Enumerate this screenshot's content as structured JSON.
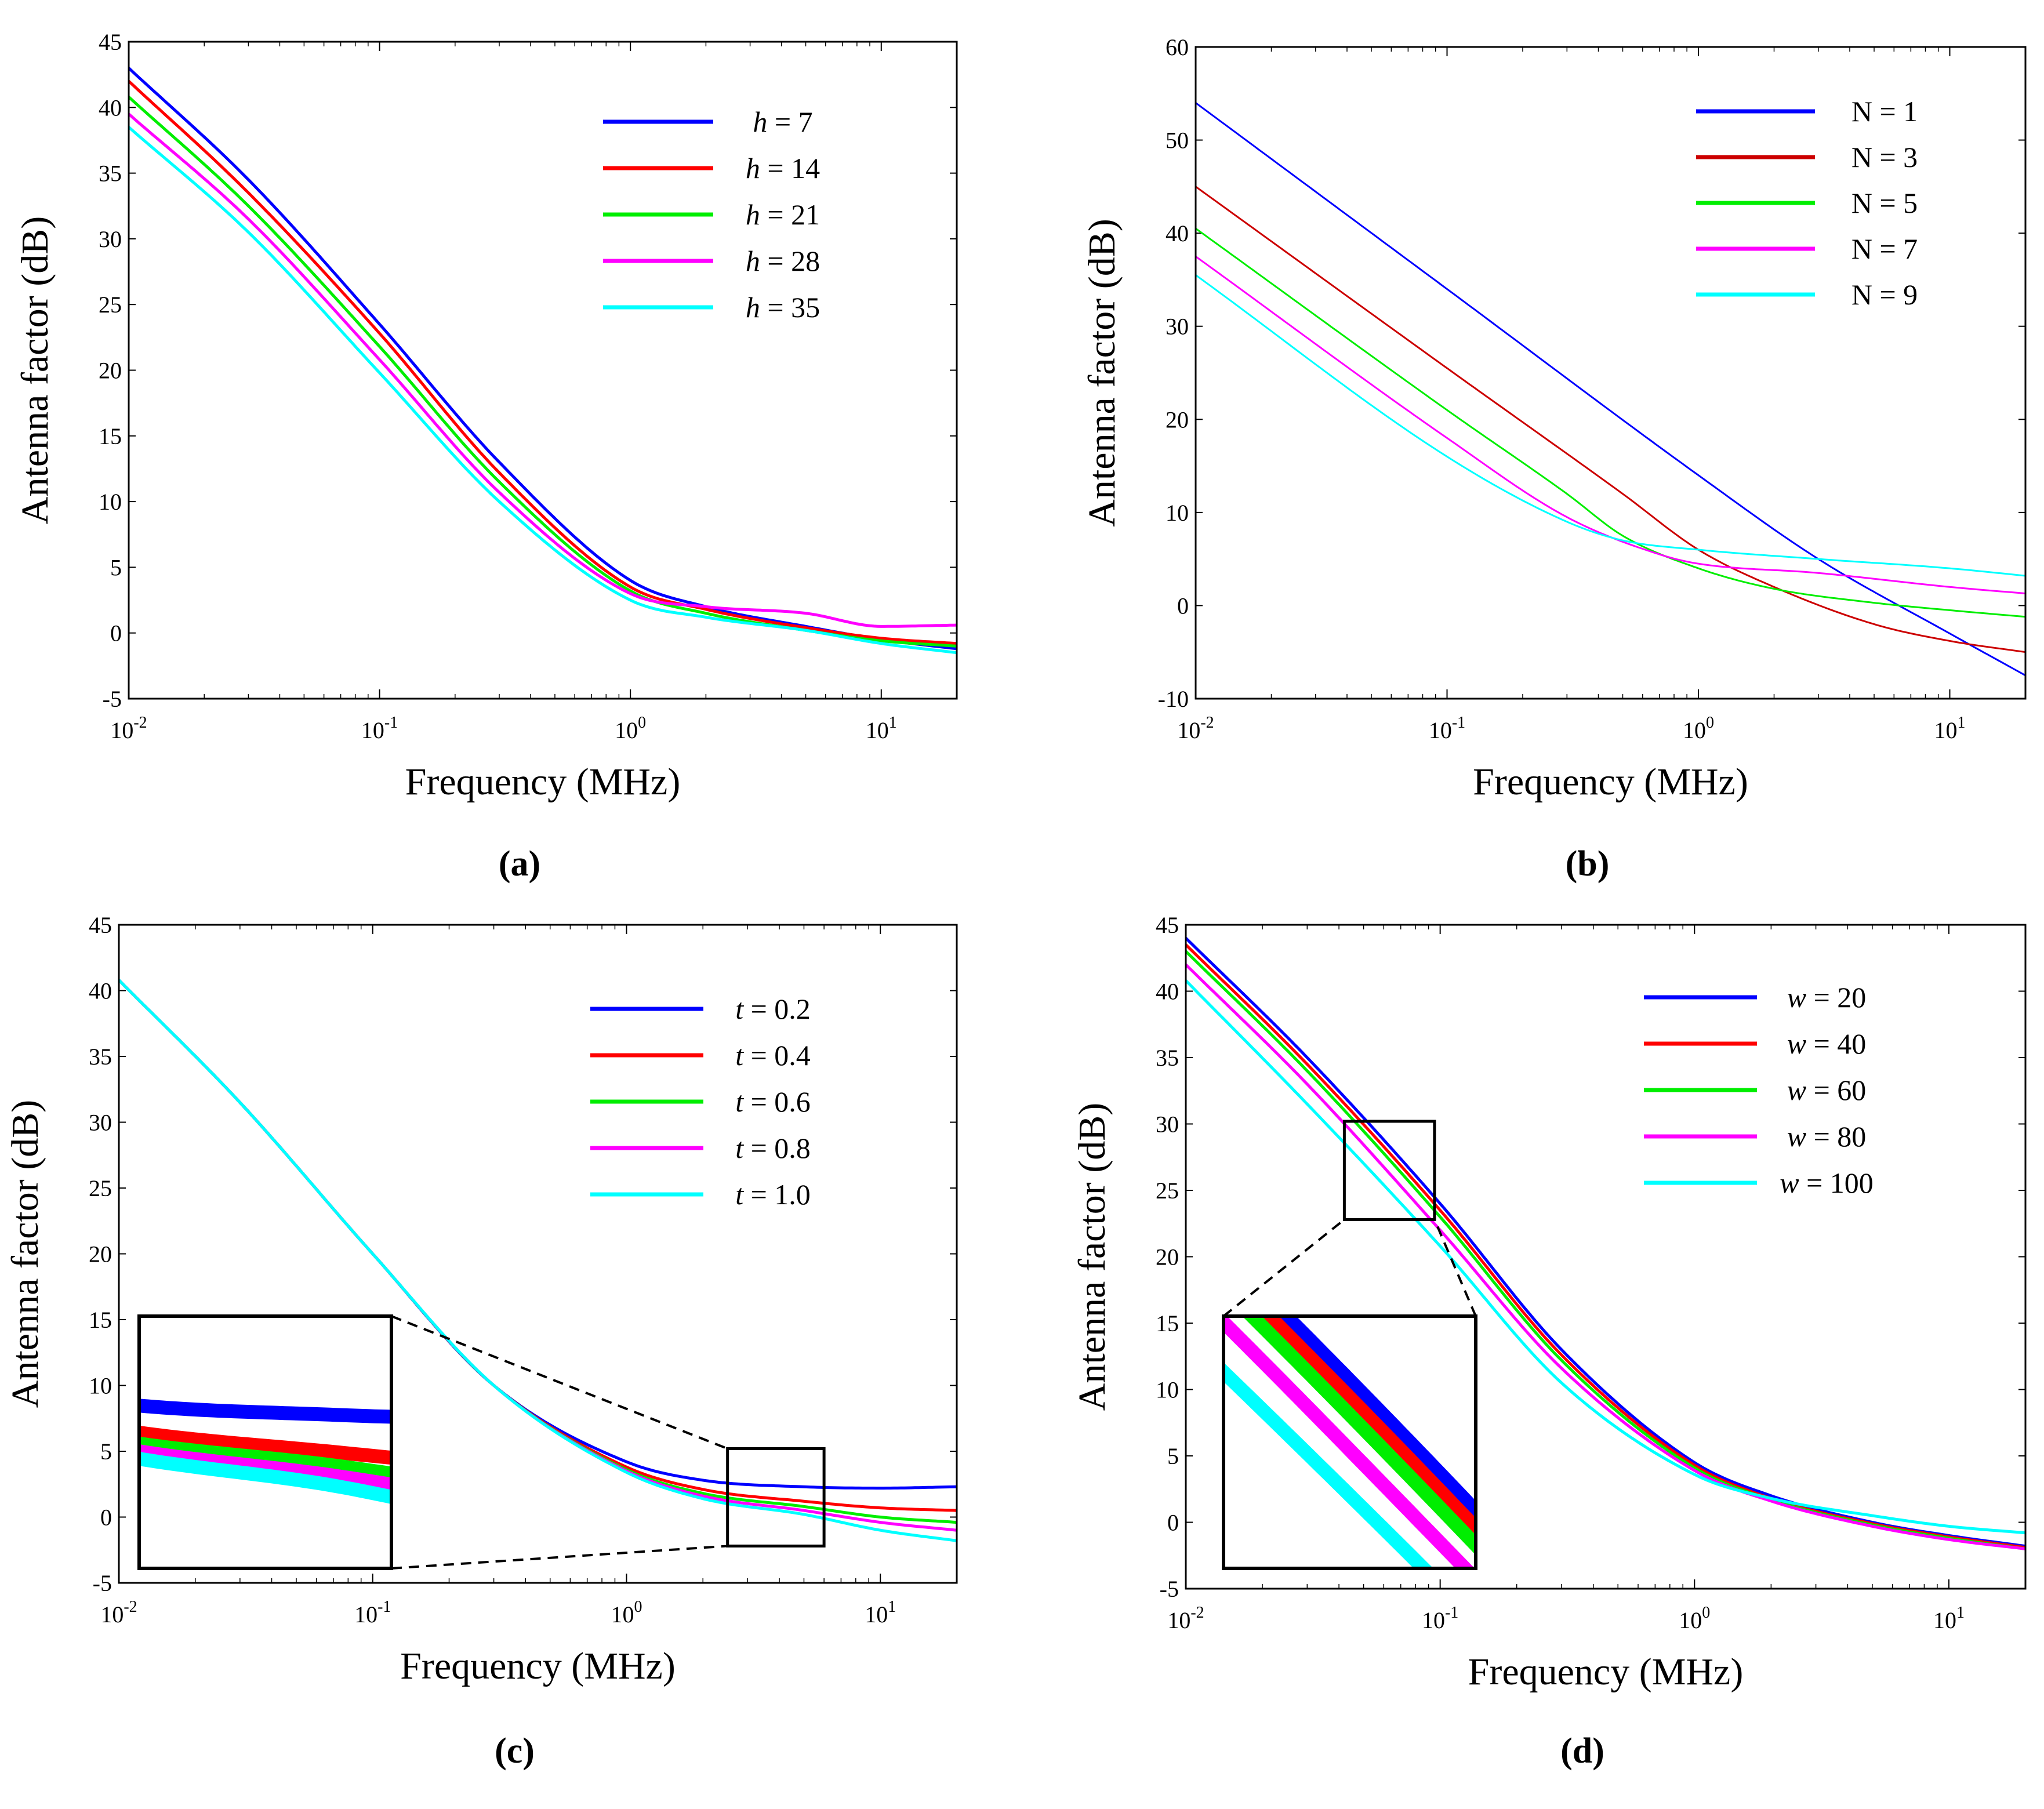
{
  "chart_data": [
    {
      "type": "line",
      "caption": "(a)",
      "xlabel": "Frequency (MHz)",
      "ylabel": "Antenna factor (dB)",
      "xscale": "log",
      "xlim": [
        0.01,
        20
      ],
      "ylim": [
        -5,
        45
      ],
      "yticks": [
        "-5",
        "0",
        "5",
        "10",
        "15",
        "20",
        "25",
        "30",
        "35",
        "40",
        "45"
      ],
      "xticks": [
        {
          "base": "10",
          "exp": "-2"
        },
        {
          "base": "10",
          "exp": "-1"
        },
        {
          "base": "10",
          "exp": "0"
        },
        {
          "base": "10",
          "exp": "1"
        }
      ],
      "legend_position": "top-right",
      "series": [
        {
          "name": "h = 7",
          "var": "h",
          "rel": "=",
          "val": "7",
          "color": "#0000ff",
          "x": [
            0.01,
            0.03,
            0.1,
            0.3,
            1,
            2,
            5,
            10,
            20
          ],
          "y": [
            43,
            34.5,
            23.5,
            13,
            4,
            2,
            0.5,
            -0.5,
            -1.2
          ]
        },
        {
          "name": "h = 14",
          "var": "h",
          "rel": "=",
          "val": "14",
          "color": "#ff0000",
          "x": [
            0.01,
            0.03,
            0.1,
            0.3,
            1,
            2,
            5,
            10,
            20
          ],
          "y": [
            42,
            33.5,
            22.8,
            12.2,
            3.5,
            1.8,
            0.4,
            -0.4,
            -0.8
          ]
        },
        {
          "name": "h = 21",
          "var": "h",
          "rel": "=",
          "val": "21",
          "color": "#00ee00",
          "x": [
            0.01,
            0.03,
            0.1,
            0.3,
            1,
            2,
            5,
            10,
            20
          ],
          "y": [
            40.8,
            32.5,
            21.8,
            11.5,
            3.2,
            1.5,
            0.2,
            -0.6,
            -1.0
          ]
        },
        {
          "name": "h = 28",
          "var": "h",
          "rel": "=",
          "val": "28",
          "color": "#ff00ff",
          "x": [
            0.01,
            0.03,
            0.1,
            0.3,
            1,
            2,
            5,
            10,
            20
          ],
          "y": [
            39.5,
            31.5,
            20.8,
            10.7,
            3.0,
            2.0,
            1.5,
            0.5,
            0.6
          ]
        },
        {
          "name": "h = 35",
          "var": "h",
          "rel": "=",
          "val": "35",
          "color": "#00ffff",
          "x": [
            0.01,
            0.03,
            0.1,
            0.3,
            1,
            2,
            5,
            10,
            20
          ],
          "y": [
            38.5,
            30.5,
            19.8,
            10.0,
            2.5,
            1.2,
            0.2,
            -0.8,
            -1.5
          ]
        }
      ]
    },
    {
      "type": "line",
      "caption": "(b)",
      "xlabel": "Frequency (MHz)",
      "ylabel": "Antenna factor (dB)",
      "xscale": "log",
      "xlim": [
        0.01,
        20
      ],
      "ylim": [
        -10,
        60
      ],
      "yticks": [
        "-10",
        "0",
        "10",
        "20",
        "30",
        "40",
        "50",
        "60"
      ],
      "xticks": [
        {
          "base": "10",
          "exp": "-2"
        },
        {
          "base": "10",
          "exp": "-1"
        },
        {
          "base": "10",
          "exp": "0"
        },
        {
          "base": "10",
          "exp": "1"
        }
      ],
      "legend_position": "top-right",
      "series": [
        {
          "name": "N = 1",
          "var": "N",
          "rel": "=",
          "val": "1",
          "color": "#0000ff",
          "x": [
            0.01,
            0.1,
            1,
            3,
            10,
            20
          ],
          "y": [
            54,
            34,
            14,
            5,
            -3,
            -7.5
          ]
        },
        {
          "name": "N = 3",
          "var": "N",
          "rel": "=",
          "val": "3",
          "color": "#cc0000",
          "x": [
            0.01,
            0.1,
            0.5,
            1,
            2,
            5,
            10,
            20
          ],
          "y": [
            45,
            25.5,
            12,
            6,
            2,
            -2,
            -3.8,
            -5
          ]
        },
        {
          "name": "N = 5",
          "var": "N",
          "rel": "=",
          "val": "5",
          "color": "#00ee00",
          "x": [
            0.01,
            0.1,
            0.3,
            0.5,
            1,
            2,
            5,
            10,
            20
          ],
          "y": [
            40.5,
            21,
            12,
            7.5,
            4,
            1.8,
            0.3,
            -0.5,
            -1.2
          ]
        },
        {
          "name": "N = 7",
          "var": "N",
          "rel": "=",
          "val": "7",
          "color": "#ff00ff",
          "x": [
            0.01,
            0.1,
            0.3,
            0.7,
            1,
            3,
            10,
            20
          ],
          "y": [
            37.5,
            18,
            9.5,
            5.5,
            4.5,
            3.5,
            2,
            1.3
          ]
        },
        {
          "name": "N = 9",
          "var": "N",
          "rel": "=",
          "val": "9",
          "color": "#00ffff",
          "x": [
            0.01,
            0.1,
            0.3,
            0.5,
            1,
            3,
            10,
            20
          ],
          "y": [
            35.5,
            16,
            9,
            7,
            6,
            5,
            4,
            3.2
          ]
        }
      ]
    },
    {
      "type": "line",
      "caption": "(c)",
      "xlabel": "Frequency (MHz)",
      "ylabel": "Antenna factor (dB)",
      "xscale": "log",
      "xlim": [
        0.01,
        20
      ],
      "ylim": [
        -5,
        45
      ],
      "yticks": [
        "-5",
        "0",
        "5",
        "10",
        "15",
        "20",
        "25",
        "30",
        "35",
        "40",
        "45"
      ],
      "xticks": [
        {
          "base": "10",
          "exp": "-2"
        },
        {
          "base": "10",
          "exp": "-1"
        },
        {
          "base": "10",
          "exp": "0"
        },
        {
          "base": "10",
          "exp": "1"
        }
      ],
      "legend_position": "top-right",
      "inset": {
        "source_x": [
          2.5,
          6
        ],
        "source_y": [
          -2.2,
          5.2
        ]
      },
      "series": [
        {
          "name": "t = 0.2",
          "var": "t",
          "rel": "=",
          "val": "0.2",
          "color": "#0000ff",
          "x": [
            0.01,
            0.03,
            0.1,
            0.3,
            1,
            2,
            5,
            10,
            20
          ],
          "y": [
            40.8,
            31.5,
            20,
            10,
            4.2,
            2.8,
            2.3,
            2.2,
            2.3
          ]
        },
        {
          "name": "t = 0.4",
          "var": "t",
          "rel": "=",
          "val": "0.4",
          "color": "#ff0000",
          "x": [
            0.01,
            0.03,
            0.1,
            0.3,
            1,
            2,
            5,
            10,
            20
          ],
          "y": [
            40.8,
            31.5,
            20,
            10,
            3.8,
            2.1,
            1.2,
            0.7,
            0.5
          ]
        },
        {
          "name": "t = 0.6",
          "var": "t",
          "rel": "=",
          "val": "0.6",
          "color": "#00ee00",
          "x": [
            0.01,
            0.03,
            0.1,
            0.3,
            1,
            2,
            5,
            10,
            20
          ],
          "y": [
            40.8,
            31.5,
            20,
            10,
            3.6,
            1.8,
            0.8,
            0,
            -0.4
          ]
        },
        {
          "name": "t = 0.8",
          "var": "t",
          "rel": "=",
          "val": "0.8",
          "color": "#ff00ff",
          "x": [
            0.01,
            0.03,
            0.1,
            0.3,
            1,
            2,
            5,
            10,
            20
          ],
          "y": [
            40.8,
            31.5,
            20,
            10,
            3.5,
            1.6,
            0.5,
            -0.4,
            -1.0
          ]
        },
        {
          "name": "t = 1.0",
          "var": "t",
          "rel": "=",
          "val": "1.0",
          "color": "#00ffff",
          "x": [
            0.01,
            0.03,
            0.1,
            0.3,
            1,
            2,
            5,
            10,
            20
          ],
          "y": [
            40.8,
            31.5,
            20,
            10,
            3.4,
            1.4,
            0.2,
            -1.0,
            -1.8
          ]
        }
      ]
    },
    {
      "type": "line",
      "caption": "(d)",
      "xlabel": "Frequency (MHz)",
      "ylabel": "Antenna factor (dB)",
      "xscale": "log",
      "xlim": [
        0.01,
        20
      ],
      "ylim": [
        -5,
        45
      ],
      "yticks": [
        "-5",
        "0",
        "5",
        "10",
        "15",
        "20",
        "25",
        "30",
        "35",
        "40",
        "45"
      ],
      "xticks": [
        {
          "base": "10",
          "exp": "-2"
        },
        {
          "base": "10",
          "exp": "-1"
        },
        {
          "base": "10",
          "exp": "0"
        },
        {
          "base": "10",
          "exp": "1"
        }
      ],
      "legend_position": "top-right",
      "inset": {
        "source_x": [
          0.042,
          0.095
        ],
        "source_y": [
          22.8,
          30.2
        ]
      },
      "series": [
        {
          "name": "w = 20",
          "var": "w",
          "rel": "=",
          "val": "20",
          "color": "#0000ff",
          "x": [
            0.01,
            0.03,
            0.1,
            0.3,
            1,
            2,
            5,
            10,
            20
          ],
          "y": [
            44,
            35,
            24,
            13,
            4.5,
            2,
            0,
            -1,
            -1.8
          ]
        },
        {
          "name": "w = 40",
          "var": "w",
          "rel": "=",
          "val": "40",
          "color": "#ff0000",
          "x": [
            0.01,
            0.03,
            0.1,
            0.3,
            1,
            2,
            5,
            10,
            20
          ],
          "y": [
            43.5,
            34.5,
            23.5,
            12.6,
            4.3,
            1.8,
            -0.1,
            -1.1,
            -1.9
          ]
        },
        {
          "name": "w = 60",
          "var": "w",
          "rel": "=",
          "val": "60",
          "color": "#00ee00",
          "x": [
            0.01,
            0.03,
            0.1,
            0.3,
            1,
            2,
            5,
            10,
            20
          ],
          "y": [
            43,
            34,
            23,
            12.2,
            4.1,
            1.7,
            -0.2,
            -1.2,
            -2.0
          ]
        },
        {
          "name": "w = 80",
          "var": "w",
          "rel": "=",
          "val": "80",
          "color": "#ff00ff",
          "x": [
            0.01,
            0.03,
            0.1,
            0.3,
            1,
            2,
            5,
            10,
            20
          ],
          "y": [
            42,
            33,
            22,
            11.6,
            3.9,
            1.6,
            -0.3,
            -1.3,
            -2.0
          ]
        },
        {
          "name": "w = 100",
          "var": "w",
          "rel": "=",
          "val": "100",
          "color": "#00ffff",
          "x": [
            0.01,
            0.03,
            0.1,
            0.3,
            1,
            2,
            5,
            10,
            20
          ],
          "y": [
            40.8,
            31.5,
            20.8,
            10.5,
            3.6,
            1.8,
            0.5,
            -0.3,
            -0.8
          ]
        }
      ]
    }
  ]
}
